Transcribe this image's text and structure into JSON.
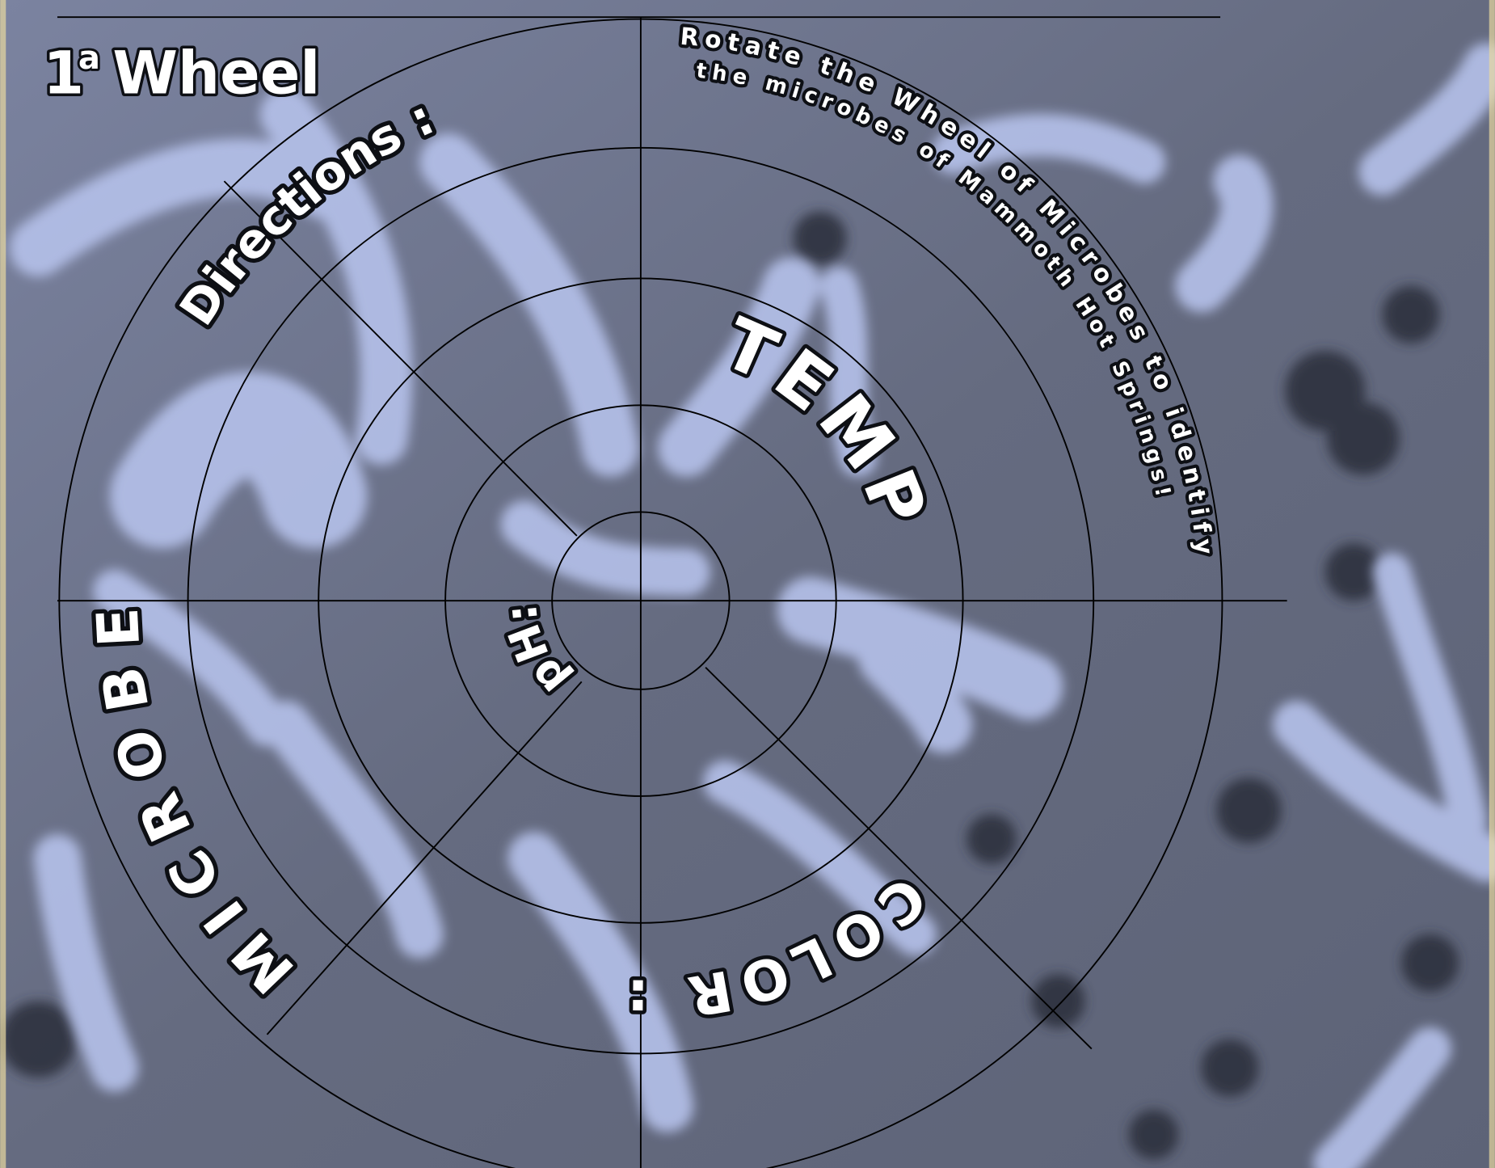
{
  "header": {
    "number": "1",
    "superscript": "a",
    "word": "Wheel"
  },
  "wheel": {
    "directions_label": "Directions :",
    "directions_text": [
      "Rotate the Wheel of Microbes to identify",
      "the microbes of Mammoth Hot Springs!"
    ],
    "segments": {
      "temp": "TEMP :",
      "ph": "pH:",
      "microbe": "MICROBE:",
      "color": "COLOR :"
    }
  }
}
